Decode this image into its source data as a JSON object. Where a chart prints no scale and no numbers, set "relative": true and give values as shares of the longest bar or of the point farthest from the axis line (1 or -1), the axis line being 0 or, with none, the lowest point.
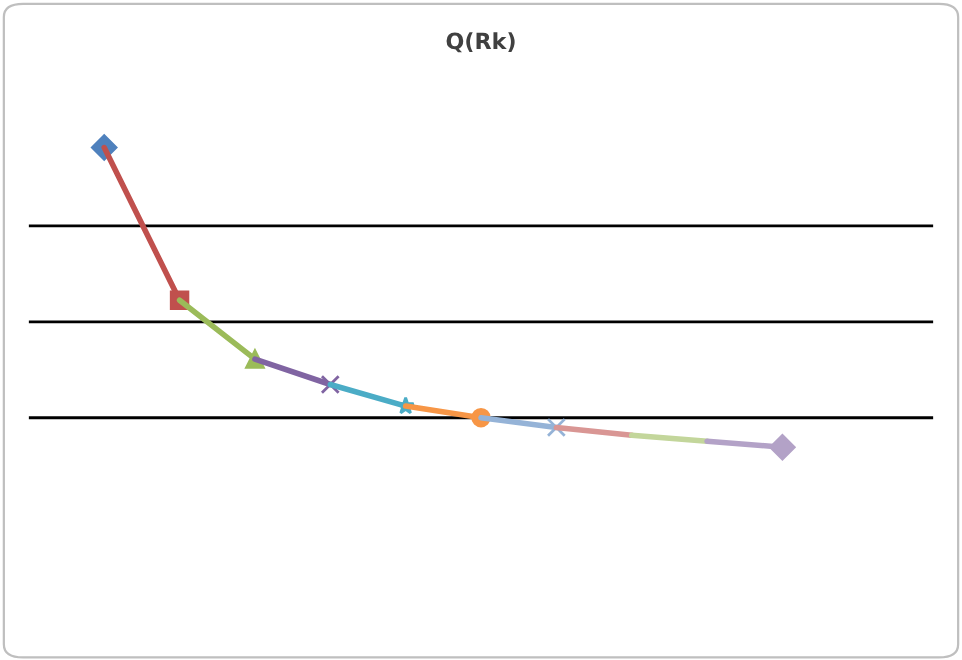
{
  "chart_data": {
    "type": "line",
    "title": "Q(Rk)",
    "relative": true,
    "legend": false,
    "ref_lines": [
      {
        "axis": "y",
        "value": 0.71,
        "color": "#000000"
      },
      {
        "axis": "y",
        "value": 0.355,
        "color": "#000000"
      }
    ],
    "categories": [
      null,
      null,
      null,
      null,
      null,
      null,
      null,
      null,
      null,
      null
    ],
    "series": [
      {
        "color": "#4f81bd",
        "marker": "diamond",
        "values": [
          1,
          null,
          null,
          null,
          null,
          null,
          null,
          null,
          null,
          null
        ]
      },
      {
        "color": "#c0504d",
        "marker": "square",
        "values": [
          1,
          0.435,
          null,
          null,
          null,
          null,
          null,
          null,
          null,
          null
        ]
      },
      {
        "color": "#9bbb59",
        "marker": "triangle",
        "values": [
          null,
          0.435,
          0.217,
          null,
          null,
          null,
          null,
          null,
          null,
          null
        ]
      },
      {
        "color": "#8064a2",
        "marker": "cross",
        "values": [
          null,
          null,
          0.217,
          0.123,
          null,
          null,
          null,
          null,
          null,
          null
        ]
      },
      {
        "color": "#4bacc6",
        "marker": "star",
        "values": [
          null,
          null,
          null,
          0.123,
          0.043,
          null,
          null,
          null,
          null,
          null
        ]
      },
      {
        "color": "#f79646",
        "marker": "circle",
        "values": [
          null,
          null,
          null,
          null,
          0.043,
          0,
          null,
          null,
          null,
          null
        ]
      },
      {
        "color": "#95b3d7",
        "marker": "cross",
        "values": [
          null,
          null,
          null,
          null,
          null,
          0,
          -0.036,
          null,
          null,
          null
        ]
      },
      {
        "color": "#d99694",
        "marker": "none",
        "values": [
          null,
          null,
          null,
          null,
          null,
          null,
          -0.036,
          -0.065,
          null,
          null
        ]
      },
      {
        "color": "#c3d69b",
        "marker": "none",
        "values": [
          null,
          null,
          null,
          null,
          null,
          null,
          null,
          -0.065,
          -0.087,
          null
        ]
      },
      {
        "color": "#b3a2c7",
        "marker": "diamond",
        "values": [
          null,
          null,
          null,
          null,
          null,
          null,
          null,
          null,
          -0.087,
          -0.109
        ]
      }
    ]
  }
}
